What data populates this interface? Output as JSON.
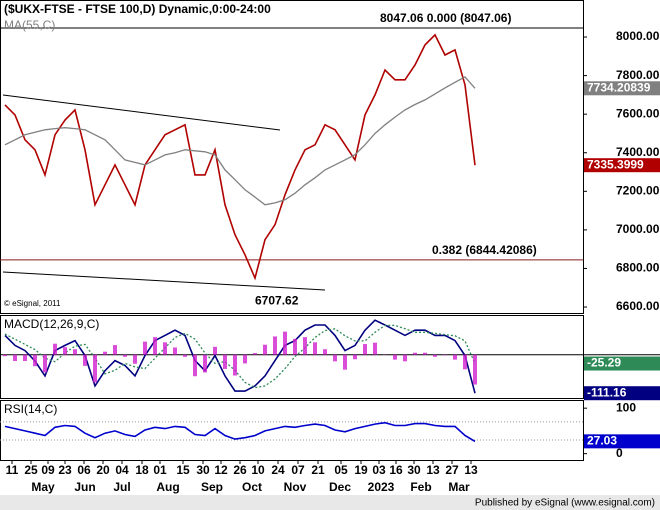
{
  "x_axis": {
    "x": [
      0,
      1,
      2,
      3,
      4,
      5,
      6,
      7,
      8,
      9,
      10,
      11,
      12,
      13,
      14,
      15,
      16,
      17,
      18,
      19,
      20,
      21,
      22,
      23,
      24,
      25,
      26,
      27,
      28,
      29,
      30,
      31,
      32,
      33,
      34,
      35,
      36,
      37,
      38,
      39,
      40,
      41,
      42,
      43,
      44,
      45,
      46,
      47
    ],
    "xlim": [
      -0.5,
      57.8
    ],
    "xticks": [
      {
        "value": 0.7,
        "label": "11"
      },
      {
        "value": 2.6,
        "label": "25"
      },
      {
        "value": 4.3,
        "label": "09"
      },
      {
        "value": 6,
        "label": "23"
      },
      {
        "value": 7.9,
        "label": "06"
      },
      {
        "value": 9.8,
        "label": "20"
      },
      {
        "value": 11.7,
        "label": "04"
      },
      {
        "value": 13.7,
        "label": "18"
      },
      {
        "value": 15.5,
        "label": "01"
      },
      {
        "value": 17.8,
        "label": "15"
      },
      {
        "value": 19.8,
        "label": "30"
      },
      {
        "value": 21.6,
        "label": "12"
      },
      {
        "value": 23.5,
        "label": "26"
      },
      {
        "value": 25.3,
        "label": "10"
      },
      {
        "value": 27.3,
        "label": "24"
      },
      {
        "value": 29.3,
        "label": "07"
      },
      {
        "value": 31.3,
        "label": "21"
      },
      {
        "value": 33.6,
        "label": "05"
      },
      {
        "value": 35.6,
        "label": "19"
      },
      {
        "value": 37.4,
        "label": "03"
      },
      {
        "value": 39.1,
        "label": "16"
      },
      {
        "value": 40.9,
        "label": "30"
      },
      {
        "value": 42.8,
        "label": "13"
      },
      {
        "value": 44.7,
        "label": "27"
      },
      {
        "value": 46.6,
        "label": "13"
      }
    ],
    "months": [
      {
        "value": 3.8,
        "label": "May"
      },
      {
        "value": 8,
        "label": "Jun"
      },
      {
        "value": 11.7,
        "label": "Jul"
      },
      {
        "value": 16.3,
        "label": "Aug"
      },
      {
        "value": 20.7,
        "label": "Sep"
      },
      {
        "value": 24.7,
        "label": "Oct"
      },
      {
        "value": 29,
        "label": "Nov"
      },
      {
        "value": 33.5,
        "label": "Dec"
      },
      {
        "value": 37.6,
        "label": "2023"
      },
      {
        "value": 41.6,
        "label": "Feb"
      },
      {
        "value": 45.4,
        "label": "Mar"
      }
    ]
  },
  "chart_data": [
    {
      "type": "line",
      "title": "($UKX-FTSE - FTSE 100,D) Dynamic,0:00-24:00",
      "ylim": [
        6569,
        8192
      ],
      "yticks": [
        {
          "value": 8000,
          "label": "8000.00"
        },
        {
          "value": 7800,
          "label": "7800.00"
        },
        {
          "value": 7600,
          "label": "7600.00"
        },
        {
          "value": 7400,
          "label": "7400.00"
        },
        {
          "value": 7200,
          "label": "7200.00"
        },
        {
          "value": 7000,
          "label": "7000.00"
        },
        {
          "value": 6800,
          "label": "6800.00"
        },
        {
          "value": 6600,
          "label": "6600.00"
        }
      ],
      "series": [
        {
          "color": "#b00000",
          "values": [
            7648,
            7596,
            7467,
            7415,
            7285,
            7493,
            7570,
            7622,
            7415,
            7130,
            7234,
            7337,
            7234,
            7130,
            7337,
            7415,
            7493,
            7519,
            7545,
            7285,
            7285,
            7415,
            7130,
            6975,
            6871,
            6750,
            6949,
            7027,
            7182,
            7311,
            7415,
            7441,
            7545,
            7519,
            7441,
            7363,
            7596,
            7700,
            7829,
            7778,
            7778,
            7855,
            7959,
            8011,
            7907,
            7933,
            7752,
            7335.3999
          ]
        },
        {
          "name": "MA(55,C)",
          "color": "#808080",
          "values": [
            7441,
            7467,
            7493,
            7506,
            7519,
            7525,
            7530,
            7525,
            7519,
            7493,
            7467,
            7415,
            7363,
            7350,
            7337,
            7363,
            7389,
            7400,
            7415,
            7410,
            7405,
            7389,
            7311,
            7260,
            7208,
            7170,
            7130,
            7140,
            7156,
            7190,
            7234,
            7270,
            7311,
            7337,
            7363,
            7390,
            7441,
            7500,
            7545,
            7585,
            7622,
            7650,
            7674,
            7705,
            7736,
            7765,
            7793,
            7734.20839
          ]
        }
      ],
      "fib_levels": [
        {
          "value": 8047.06,
          "label": "8047.06 0.000 (8047.06)",
          "color": "#000000"
        },
        {
          "value": 6844.42086,
          "label": "0.382 (6844.42086)",
          "color": "#8b1a1a"
        }
      ],
      "low": 6707.62,
      "watermark": "© eSignal, 2011"
    },
    {
      "type": "line",
      "title": "MACD(12,26,9,C)",
      "ylim": [
        -125,
        115
      ],
      "baseline": 0,
      "series": [
        {
          "color": "#000080",
          "values": [
            56,
            27,
            12,
            -18,
            -61,
            12,
            27,
            41,
            -2,
            -90,
            -46,
            -17,
            -31,
            -61,
            -2,
            41,
            56,
            71,
            56,
            -17,
            -46,
            -2,
            -61,
            -105,
            -105,
            -90,
            -61,
            -17,
            27,
            41,
            71,
            86,
            86,
            56,
            12,
            27,
            71,
            100,
            86,
            71,
            56,
            71,
            71,
            56,
            56,
            41,
            -2,
            -111.16
          ]
        },
        {
          "color": "#2e8b57",
          "style": "dotted",
          "values": [
            60,
            45,
            30,
            15,
            -10,
            -20,
            5,
            25,
            30,
            -10,
            -55,
            -45,
            -25,
            -35,
            -40,
            -10,
            20,
            50,
            62,
            45,
            5,
            -25,
            -20,
            -45,
            -80,
            -95,
            -90,
            -70,
            -40,
            -5,
            20,
            50,
            70,
            75,
            55,
            40,
            40,
            65,
            85,
            85,
            75,
            65,
            65,
            62,
            58,
            55,
            40,
            -25.29
          ]
        },
        {
          "color": "#d020d0",
          "style": "bars",
          "values": [
            -4,
            -18,
            -18,
            -33,
            -51,
            32,
            22,
            16,
            -32,
            -80,
            9,
            28,
            -6,
            -26,
            38,
            51,
            36,
            21,
            -6,
            -62,
            -51,
            23,
            -41,
            -60,
            -25,
            5,
            29,
            53,
            67,
            46,
            51,
            36,
            16,
            -19,
            -43,
            -13,
            31,
            35,
            1,
            -14,
            -19,
            6,
            6,
            -6,
            -2,
            -14,
            -42,
            -86
          ]
        }
      ]
    },
    {
      "type": "line",
      "title": "RSI(14,C)",
      "ylim": [
        -14,
        118
      ],
      "yticks": [
        100,
        0
      ],
      "bands": [
        70,
        30
      ],
      "series": [
        {
          "color": "#0000cd",
          "values": [
            60,
            55,
            50,
            45,
            40,
            58,
            62,
            60,
            45,
            35,
            45,
            50,
            42,
            38,
            52,
            58,
            55,
            60,
            58,
            42,
            40,
            55,
            40,
            32,
            35,
            40,
            50,
            55,
            60,
            58,
            62,
            65,
            62,
            52,
            48,
            55,
            60,
            65,
            68,
            62,
            62,
            66,
            66,
            62,
            60,
            60,
            40,
            27.03
          ]
        }
      ]
    }
  ],
  "footer": "Published by eSignal (www.esignal.com)"
}
